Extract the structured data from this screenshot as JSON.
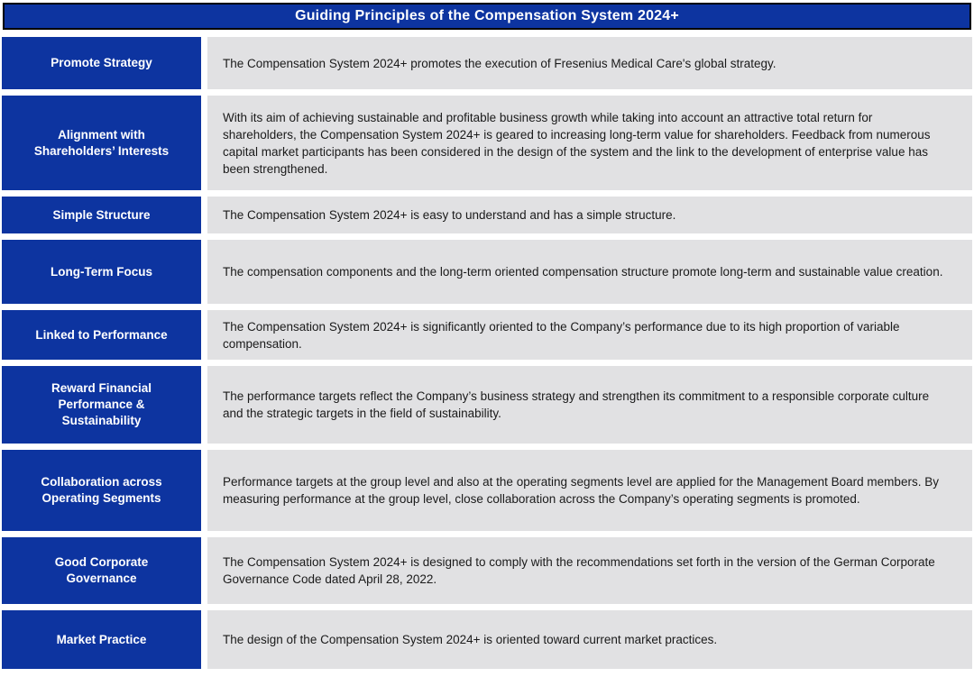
{
  "header": {
    "title": "Guiding Principles of the Compensation System 2024+"
  },
  "colors": {
    "primary_blue": "#0D34A0",
    "row_gray": "#E1E1E3",
    "header_border": "#000000",
    "label_text": "#FFFFFF",
    "body_text": "#1A1A1A",
    "background": "#FFFFFF"
  },
  "rows": [
    {
      "label": "Promote Strategy",
      "description": "The Compensation System 2024+ promotes the execution of Fresenius Medical Care's global strategy."
    },
    {
      "label": "Alignment with Shareholders’ Interests",
      "description": "With its aim of achieving sustainable and profitable business growth while taking into account an attractive total return for shareholders, the Compensation System 2024+ is geared to increasing long-term value for shareholders. Feedback from numerous capital market participants has been considered in the design of the system and the link to the development of enterprise value has been strengthened."
    },
    {
      "label": "Simple Structure",
      "description": "The Compensation System 2024+ is easy to understand and has a simple structure."
    },
    {
      "label": "Long-Term Focus",
      "description": "The compensation components and the long-term oriented compensation structure promote long-term and sustainable value creation."
    },
    {
      "label": "Linked to Performance",
      "description": "The Compensation System 2024+ is significantly oriented to the Company’s performance due to its high proportion of variable compensation."
    },
    {
      "label": "Reward Financial Performance & Sustainability",
      "description": "The performance targets reflect the Company’s business strategy and strengthen its commitment to a responsible corporate culture and the strategic targets in the field of sustainability."
    },
    {
      "label": "Collaboration across Operating Segments",
      "description": "Performance targets at the group level and also at the operating segments level are applied for the Management Board members. By measuring performance at the group level, close collaboration across the Company’s operating segments is promoted."
    },
    {
      "label": "Good Corporate Governance",
      "description": "The Compensation System 2024+ is designed to comply with the recommendations set forth in the version of the German Corporate Governance Code dated April 28, 2022."
    },
    {
      "label": "Market Practice",
      "description": "The design of the Compensation System 2024+ is oriented toward current market practices."
    }
  ]
}
